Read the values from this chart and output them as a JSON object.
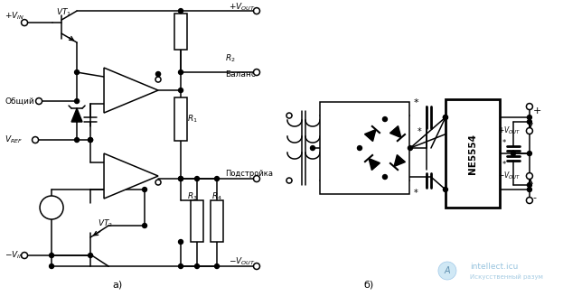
{
  "bg_color": "#ffffff",
  "line_color": "#000000",
  "text_color": "#000000",
  "figsize": [
    6.23,
    3.28
  ],
  "dpi": 100,
  "label_a": "а)",
  "label_b": "б)",
  "watermark_text": "intellect.icu",
  "watermark_sub": "Искусственный разум"
}
